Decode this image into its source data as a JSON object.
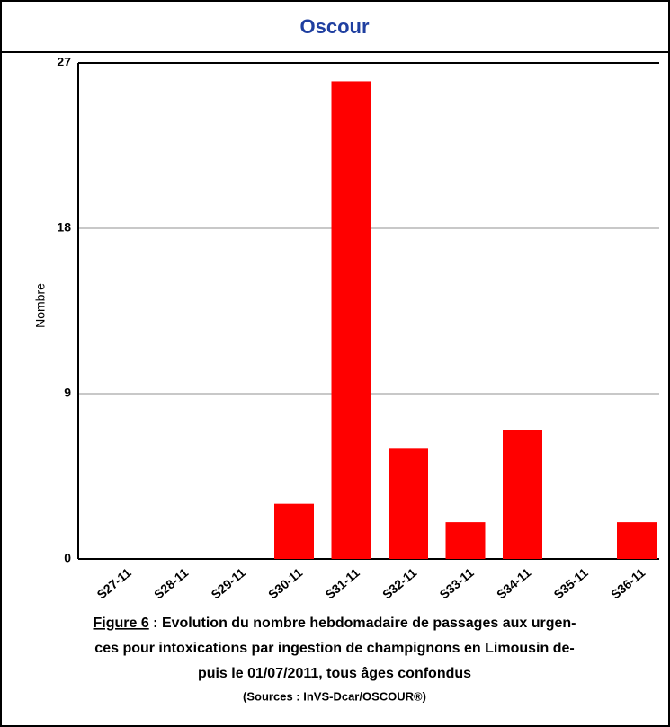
{
  "chart_data": {
    "type": "bar",
    "title": "Oscour",
    "ylabel": "Nombre",
    "categories": [
      "S27-11",
      "S28-11",
      "S29-11",
      "S30-11",
      "S31-11",
      "S32-11",
      "S33-11",
      "S34-11",
      "S35-11",
      "S36-11"
    ],
    "values": [
      0,
      0,
      0,
      3,
      26,
      6,
      2,
      7,
      0,
      2
    ],
    "color": "#ff0000",
    "ylim": [
      0,
      27
    ],
    "yticks": [
      0,
      9,
      18,
      27
    ],
    "grid": true,
    "figure_label": "Figure 6",
    "caption": [
      " : Evolution du nombre hebdomadaire de passages aux urgen-",
      "ces pour intoxications par ingestion de champignons en Limousin de-",
      "puis le 01/07/2011, tous âges confondus"
    ],
    "source": "(Sources : InVS-Dcar/OSCOUR®)"
  }
}
